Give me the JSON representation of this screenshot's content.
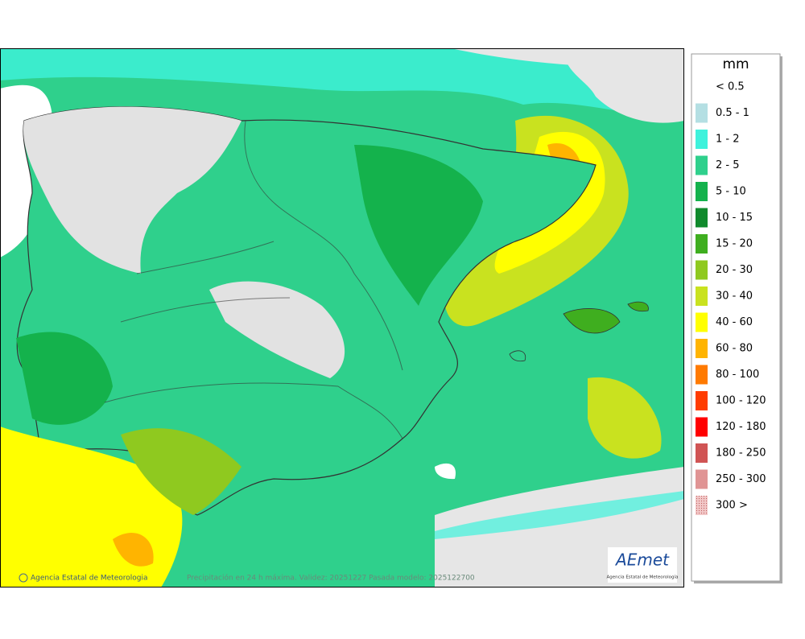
{
  "legend": {
    "title": "mm",
    "items": [
      {
        "label": "< 0.5",
        "color": "#ffffff"
      },
      {
        "label": "0.5 - 1",
        "color": "#b4dfe3"
      },
      {
        "label": "1 - 2",
        "color": "#3ef2dc"
      },
      {
        "label": "2 - 5",
        "color": "#2fd08c"
      },
      {
        "label": "5 - 10",
        "color": "#14b24c"
      },
      {
        "label": "10 - 15",
        "color": "#108a2c"
      },
      {
        "label": "15 - 20",
        "color": "#3fae1f"
      },
      {
        "label": "20 - 30",
        "color": "#8fc91f"
      },
      {
        "label": "30 - 40",
        "color": "#c9e21f"
      },
      {
        "label": "40 - 60",
        "color": "#ffff00"
      },
      {
        "label": "60 - 80",
        "color": "#ffb400"
      },
      {
        "label": "80 - 100",
        "color": "#ff7a00"
      },
      {
        "label": "100 - 120",
        "color": "#ff3c00"
      },
      {
        "label": "120 - 180",
        "color": "#ff0000"
      },
      {
        "label": "180 - 250",
        "color": "#d05454"
      },
      {
        "label": "250 - 300",
        "color": "#e09494"
      },
      {
        "label": "300 >",
        "color": "#f2c8c8"
      }
    ]
  },
  "footer": {
    "credit": "Agencia Estatal de Meteorologia",
    "caption": "Precipitación en 24 h máxima. Validez: 20251227 Pasada modelo: 2025122700"
  },
  "logo": {
    "name": "AEmet",
    "subtitle": "Agencia Estatal de Meteorología"
  }
}
